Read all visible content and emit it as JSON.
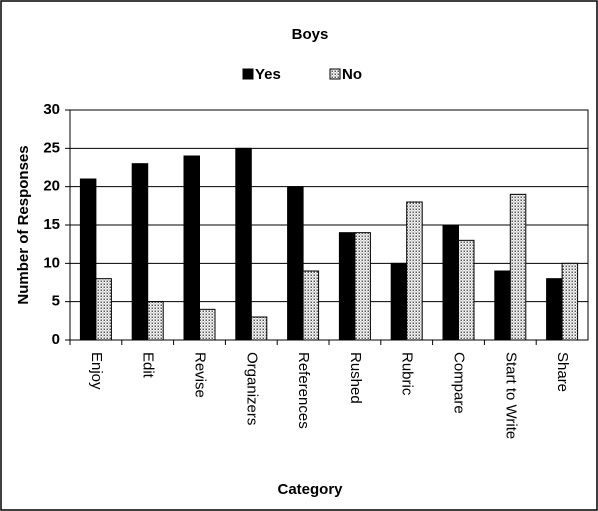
{
  "chart_data": {
    "type": "bar",
    "title": "Boys",
    "x_label": "Category",
    "y_label": "Number of Responses",
    "categories": [
      "Enjoy",
      "Edit",
      "Revise",
      "Organizers",
      "References",
      "Rushed",
      "Rubric",
      "Compare",
      "Start to Write",
      "Share"
    ],
    "series": [
      {
        "name": "Yes",
        "color": "#000000",
        "values": [
          21,
          23,
          24,
          25,
          20,
          14,
          10,
          15,
          9,
          8
        ]
      },
      {
        "name": "No",
        "color": "#c8c8c8",
        "values": [
          8,
          5,
          4,
          3,
          9,
          14,
          18,
          13,
          19,
          10
        ]
      }
    ],
    "ylim": [
      0,
      30
    ],
    "yticks": [
      0,
      5,
      10,
      15,
      20,
      25,
      30
    ],
    "grid": true,
    "legend": "top"
  }
}
